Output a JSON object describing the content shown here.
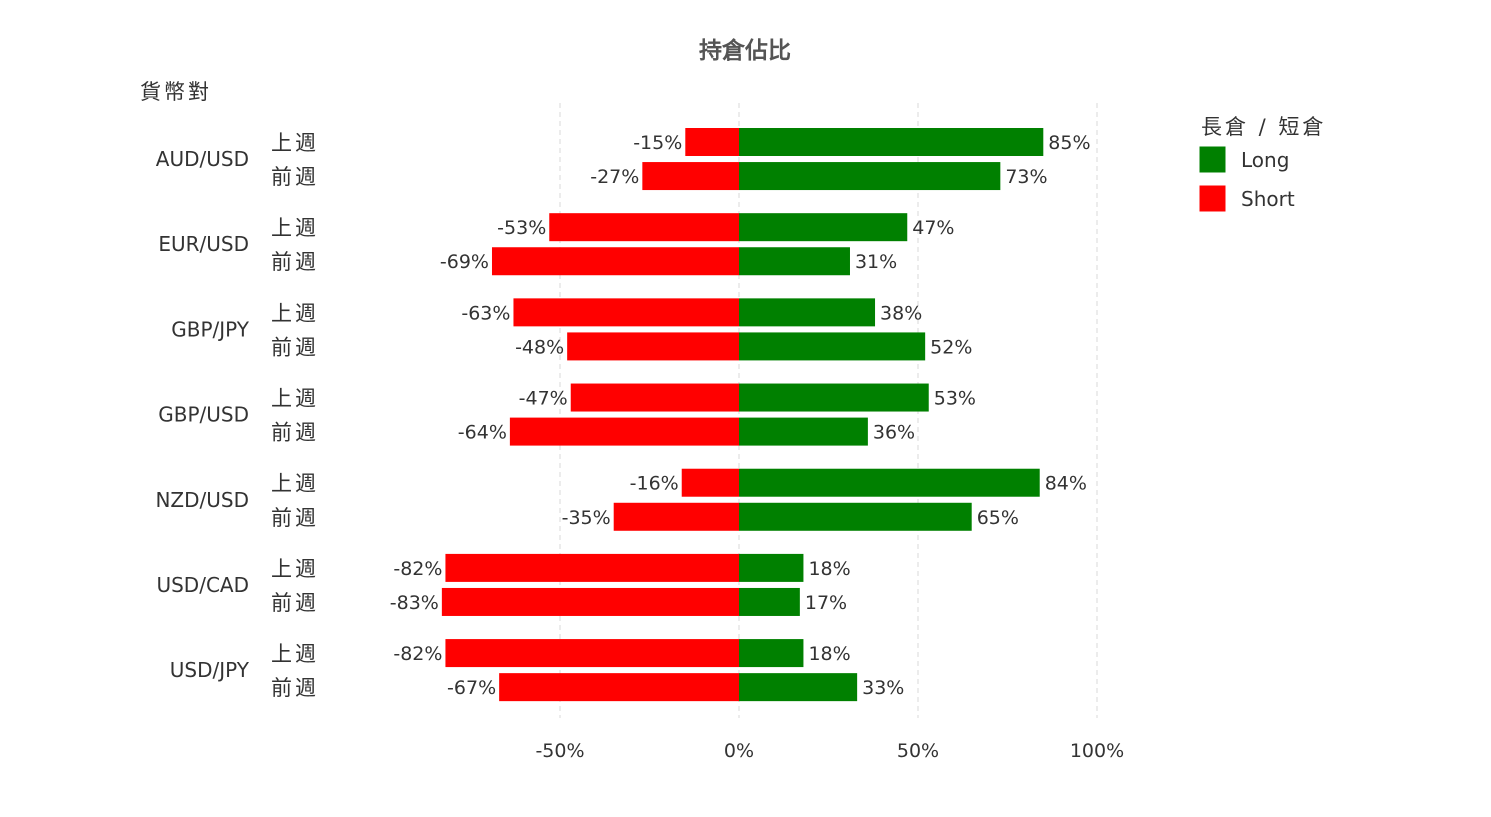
{
  "chart_data": {
    "type": "bar",
    "orientation": "horizontal-diverging",
    "title": "持倉佔比",
    "ylabel": "貨幣對",
    "xlim": [
      -100,
      100
    ],
    "x_ticks": [
      -50,
      0,
      50,
      100
    ],
    "x_tick_labels": [
      "-50%",
      "0%",
      "50%",
      "100%"
    ],
    "grid": "vertical dashed",
    "legend": {
      "title": "長倉 / 短倉",
      "position": "top-right",
      "items": [
        {
          "label": "Long",
          "color": "#008000"
        },
        {
          "label": "Short",
          "color": "#ff0000"
        }
      ]
    },
    "week_labels": [
      "上週",
      "前週"
    ],
    "categories": [
      "AUD/USD",
      "EUR/USD",
      "GBP/JPY",
      "GBP/USD",
      "NZD/USD",
      "USD/CAD",
      "USD/JPY"
    ],
    "rows": [
      {
        "pair": "AUD/USD",
        "week": "上週",
        "short": -15,
        "long": 85,
        "short_label": "-15%",
        "long_label": "85%"
      },
      {
        "pair": "AUD/USD",
        "week": "前週",
        "short": -27,
        "long": 73,
        "short_label": "-27%",
        "long_label": "73%"
      },
      {
        "pair": "EUR/USD",
        "week": "上週",
        "short": -53,
        "long": 47,
        "short_label": "-53%",
        "long_label": "47%"
      },
      {
        "pair": "EUR/USD",
        "week": "前週",
        "short": -69,
        "long": 31,
        "short_label": "-69%",
        "long_label": "31%"
      },
      {
        "pair": "GBP/JPY",
        "week": "上週",
        "short": -63,
        "long": 38,
        "short_label": "-63%",
        "long_label": "38%"
      },
      {
        "pair": "GBP/JPY",
        "week": "前週",
        "short": -48,
        "long": 52,
        "short_label": "-48%",
        "long_label": "52%"
      },
      {
        "pair": "GBP/USD",
        "week": "上週",
        "short": -47,
        "long": 53,
        "short_label": "-47%",
        "long_label": "53%"
      },
      {
        "pair": "GBP/USD",
        "week": "前週",
        "short": -64,
        "long": 36,
        "short_label": "-64%",
        "long_label": "36%"
      },
      {
        "pair": "NZD/USD",
        "week": "上週",
        "short": -16,
        "long": 84,
        "short_label": "-16%",
        "long_label": "84%"
      },
      {
        "pair": "NZD/USD",
        "week": "前週",
        "short": -35,
        "long": 65,
        "short_label": "-35%",
        "long_label": "65%"
      },
      {
        "pair": "USD/CAD",
        "week": "上週",
        "short": -82,
        "long": 18,
        "short_label": "-82%",
        "long_label": "18%"
      },
      {
        "pair": "USD/CAD",
        "week": "前週",
        "short": -83,
        "long": 17,
        "short_label": "-83%",
        "long_label": "17%"
      },
      {
        "pair": "USD/JPY",
        "week": "上週",
        "short": -82,
        "long": 18,
        "short_label": "-82%",
        "long_label": "18%"
      },
      {
        "pair": "USD/JPY",
        "week": "前週",
        "short": -67,
        "long": 33,
        "short_label": "-67%",
        "long_label": "33%"
      }
    ]
  }
}
